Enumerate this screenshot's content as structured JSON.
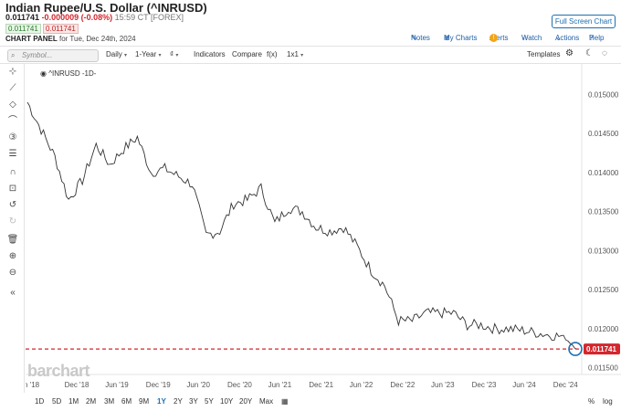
{
  "header": {
    "title": "Indian Rupee/U.S. Dollar (^INRUSD)",
    "price": "0.011741",
    "change": "-0.000009 (-0.08%)",
    "time": "15:59 CT [FOREX]",
    "bid": "0.011741",
    "ask": "0.011741",
    "panel_label": "CHART PANEL",
    "panel_date": "for Tue, Dec 24th, 2024"
  },
  "actions": {
    "fullscreen": "Full Screen Chart",
    "notes": "Notes",
    "my_charts": "My Charts",
    "alerts": "Alerts",
    "watch": "Watch",
    "actions": "Actions",
    "help": "Help"
  },
  "toolbar": {
    "symbol_placeholder": "Symbol...",
    "daily": "Daily",
    "period": "1-Year",
    "indicators": "Indicators",
    "compare": "Compare",
    "fx": "f(x)",
    "layout": "1x1",
    "templates": "Templates"
  },
  "chart_label": "^INRUSD -1D-",
  "watermark": "barchart",
  "ranges": [
    "1D",
    "5D",
    "1M",
    "2M",
    "3M",
    "6M",
    "9M",
    "1Y",
    "2Y",
    "3Y",
    "5Y",
    "10Y",
    "20Y",
    "Max"
  ],
  "active_range": "1Y",
  "scale_options": [
    "%",
    "log"
  ],
  "colors": {
    "accent": "#1e6fb0",
    "down": "#d4262d",
    "up": "#2a7a2a",
    "last_price": "#d4262d"
  },
  "chart_data": {
    "type": "line",
    "title": "^INRUSD -1D-",
    "x": [
      "May 2018",
      "Jul 2018",
      "Sep 2018",
      "Oct 2018",
      "Nov 2018",
      "Dec 2018",
      "Feb 2019",
      "Apr 2019",
      "Jun 2019",
      "Aug 2019",
      "Oct 2019",
      "Dec 2019",
      "Feb 2020",
      "Mar 2020",
      "Jun 2020",
      "Sep 2020",
      "Dec 2020",
      "Feb 2021",
      "Apr 2021",
      "Jun 2021",
      "Aug 2021",
      "Oct 2021",
      "Dec 2021",
      "Feb 2022",
      "Apr 2022",
      "Jun 2022",
      "Aug 2022",
      "Oct 2022",
      "Dec 2022",
      "Feb 2023",
      "Apr 2023",
      "Jun 2023",
      "Aug 2023",
      "Oct 2023",
      "Dec 2023",
      "Feb 2024",
      "Apr 2024",
      "Jun 2024",
      "Aug 2024",
      "Oct 2024",
      "Dec 2024"
    ],
    "y": [
      0.0149,
      0.01455,
      0.0142,
      0.01365,
      0.0139,
      0.01435,
      0.0141,
      0.0143,
      0.01445,
      0.014,
      0.01405,
      0.01395,
      0.01385,
      0.0132,
      0.01325,
      0.0136,
      0.01365,
      0.0138,
      0.01335,
      0.01355,
      0.0135,
      0.0133,
      0.01325,
      0.0133,
      0.01305,
      0.01275,
      0.01255,
      0.0121,
      0.0121,
      0.0122,
      0.0122,
      0.0122,
      0.01205,
      0.01205,
      0.012,
      0.012,
      0.01198,
      0.01195,
      0.01192,
      0.0119,
      0.011741
    ],
    "x_ticks": [
      "n '18",
      "Dec '18",
      "Jun '19",
      "Dec '19",
      "Jun '20",
      "Dec '20",
      "Jun '21",
      "Dec '21",
      "Jun '22",
      "Dec '22",
      "Jun '23",
      "Dec '23",
      "Jun '24",
      "Dec '24"
    ],
    "y_ticks": [
      0.015,
      0.0145,
      0.014,
      0.0135,
      0.013,
      0.0125,
      0.012,
      0.0115
    ],
    "y_tick_labels": [
      "0.015000",
      "0.014500",
      "0.014000",
      "0.013500",
      "0.013000",
      "0.012500",
      "0.012000",
      "0.011500"
    ],
    "ylim": [
      0.01145,
      0.01525
    ],
    "last_price": 0.011741,
    "last_price_label": "0.011741",
    "grid": false
  }
}
